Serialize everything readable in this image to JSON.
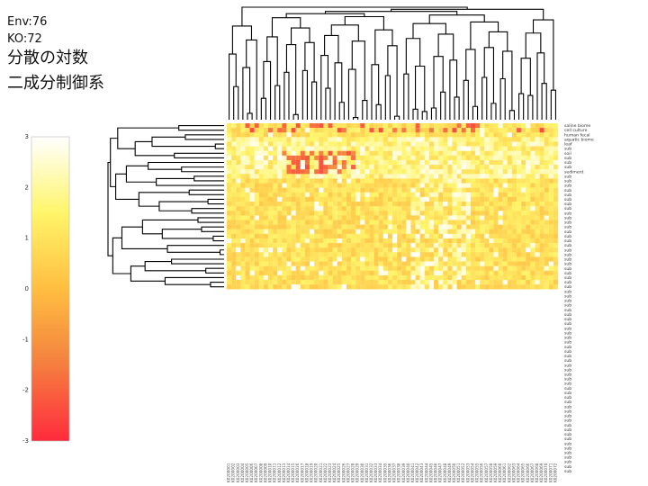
{
  "header": {
    "env_label": "Env:76",
    "ko_label": "KO:72",
    "line1": "分散の対数",
    "line2": "二成分制御系"
  },
  "colors": {
    "high": "#ffffff",
    "mid_high": "#fff56a",
    "mid": "#ffbe40",
    "mid_low": "#f4873f",
    "low": "#ff2b3d"
  },
  "chart_data": {
    "type": "heatmap",
    "colorbar": {
      "range": [
        -3,
        3
      ],
      "ticks": [
        3,
        2,
        1,
        0,
        -1,
        -2,
        -3
      ],
      "tick_labels": [
        "3",
        "2",
        "1",
        "0",
        "-1",
        "-2",
        "-3"
      ]
    },
    "row_labels": [
      "saline biome",
      "cell culture",
      "human fecal",
      "aquatic biome",
      "leaf",
      "sub",
      "soil",
      "sub",
      "sub",
      "sub",
      "sediment",
      "sub",
      "sub",
      "sub",
      "sub",
      "sub",
      "sub",
      "sub",
      "sub",
      "sub",
      "sub",
      "sub",
      "sub",
      "sub",
      "sub",
      "sub",
      "sub",
      "sub",
      "sub",
      "sub",
      "sub",
      "sub",
      "sub",
      "sub",
      "sub",
      "sub",
      "sub",
      "sub",
      "sub",
      "sub",
      "sub",
      "sub",
      "sub",
      "sub",
      "sub",
      "sub",
      "sub",
      "sub",
      "sub",
      "sub",
      "sub",
      "sub",
      "sub",
      "sub",
      "sub",
      "sub",
      "sub",
      "sub",
      "sub",
      "sub",
      "sub",
      "sub",
      "sub",
      "sub",
      "sub",
      "sub",
      "sub",
      "sub",
      "sub",
      "sub",
      "sub",
      "sub",
      "sub",
      "sub",
      "sub",
      "sub"
    ],
    "n_rows": 76,
    "n_cols": 72,
    "n_colored_rows": 36,
    "col_label_text": "K02000"
  }
}
